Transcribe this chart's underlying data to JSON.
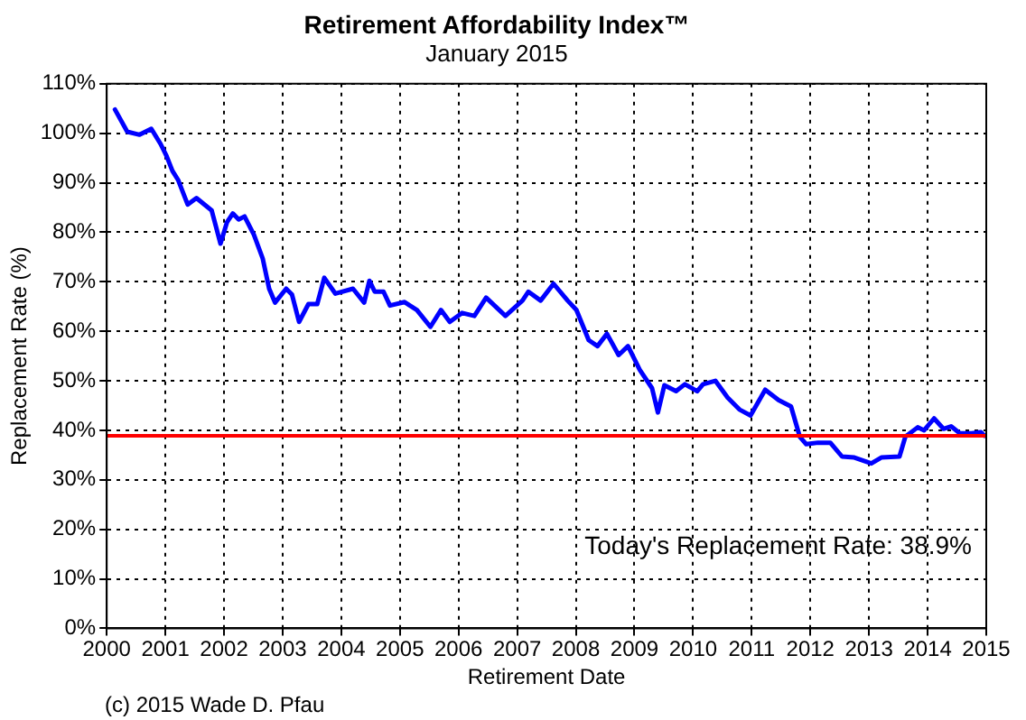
{
  "chart_data": {
    "type": "line",
    "title": "Retirement Affordability Index™",
    "subtitle": "January 2015",
    "xlabel": "Retirement Date",
    "ylabel": "Replacement Rate (%)",
    "x": [
      2000.14,
      2000.35,
      2000.56,
      2000.76,
      2000.92,
      2001.02,
      2001.12,
      2001.22,
      2001.38,
      2001.53,
      2001.79,
      2001.94,
      2002.05,
      2002.15,
      2002.25,
      2002.35,
      2002.51,
      2002.66,
      2002.77,
      2002.87,
      2003.06,
      2003.16,
      2003.28,
      2003.44,
      2003.59,
      2003.71,
      2003.9,
      2004.2,
      2004.39,
      2004.48,
      2004.57,
      2004.72,
      2004.83,
      2005.08,
      2005.29,
      2005.52,
      2005.7,
      2005.85,
      2006.06,
      2006.27,
      2006.47,
      2006.8,
      2007.09,
      2007.19,
      2007.4,
      2007.62,
      2007.86,
      2008.01,
      2008.22,
      2008.37,
      2008.53,
      2008.73,
      2008.89,
      2009.09,
      2009.3,
      2009.4,
      2009.51,
      2009.71,
      2009.86,
      2010.07,
      2010.17,
      2010.38,
      2010.59,
      2010.79,
      2010.98,
      2011.23,
      2011.46,
      2011.67,
      2011.82,
      2011.93,
      2012.13,
      2012.34,
      2012.54,
      2012.75,
      2013.04,
      2013.21,
      2013.52,
      2013.62,
      2013.83,
      2013.94,
      2014.11,
      2014.27,
      2014.4,
      2014.55,
      2014.75,
      2014.91,
      2014.97
    ],
    "series": [
      {
        "color": "#0000ff",
        "values": [
          104.8,
          100.3,
          99.7,
          100.9,
          97.8,
          95.4,
          92.4,
          90.5,
          85.6,
          86.9,
          84.4,
          77.7,
          82,
          83.8,
          82.6,
          83.2,
          79.5,
          74.7,
          68.6,
          65.8,
          68.6,
          67.4,
          61.9,
          65.5,
          65.5,
          70.8,
          67.6,
          68.6,
          65.8,
          70.2,
          68,
          68,
          65.2,
          65.9,
          64.3,
          60.9,
          64.3,
          61.9,
          63.7,
          63.1,
          66.8,
          63.1,
          66.2,
          68,
          66.2,
          69.6,
          66.2,
          64.3,
          58.2,
          57,
          59.5,
          55.2,
          57,
          52.2,
          48.5,
          43.6,
          49.1,
          47.9,
          49.3,
          47.9,
          49.3,
          50,
          46.6,
          44.2,
          43,
          48.2,
          46.1,
          44.8,
          38.7,
          37.2,
          37.5,
          37.5,
          34.7,
          34.5,
          33.3,
          34.5,
          34.7,
          38.7,
          40.6,
          40,
          42.4,
          40.3,
          40.8,
          39.4,
          39.4,
          39.6,
          38.9
        ]
      }
    ],
    "xlim": [
      2000,
      2015
    ],
    "xticks": [
      2000,
      2001,
      2002,
      2003,
      2004,
      2005,
      2006,
      2007,
      2008,
      2009,
      2010,
      2011,
      2012,
      2013,
      2014,
      2015
    ],
    "ylim": [
      0,
      110
    ],
    "yticks": [
      {
        "value": 0,
        "label": "0%"
      },
      {
        "value": 10,
        "label": "10%"
      },
      {
        "value": 20,
        "label": "20%"
      },
      {
        "value": 30,
        "label": "30%"
      },
      {
        "value": 40,
        "label": "40%"
      },
      {
        "value": 50,
        "label": "50%"
      },
      {
        "value": 60,
        "label": "60%"
      },
      {
        "value": 70,
        "label": "70%"
      },
      {
        "value": 80,
        "label": "80%"
      },
      {
        "value": 90,
        "label": "90%"
      },
      {
        "value": 100,
        "label": "100%"
      },
      {
        "value": 110,
        "label": "110%"
      }
    ],
    "ref_lines": [
      {
        "axis": "y",
        "value": 38.9,
        "color": "#ff0000"
      }
    ],
    "annotations": [
      "Today's Replacement Rate: 38.9%",
      "(c) 2015 Wade D. Pfau"
    ],
    "grid": true,
    "legend": false,
    "marker": "none",
    "line_style": "solid"
  }
}
